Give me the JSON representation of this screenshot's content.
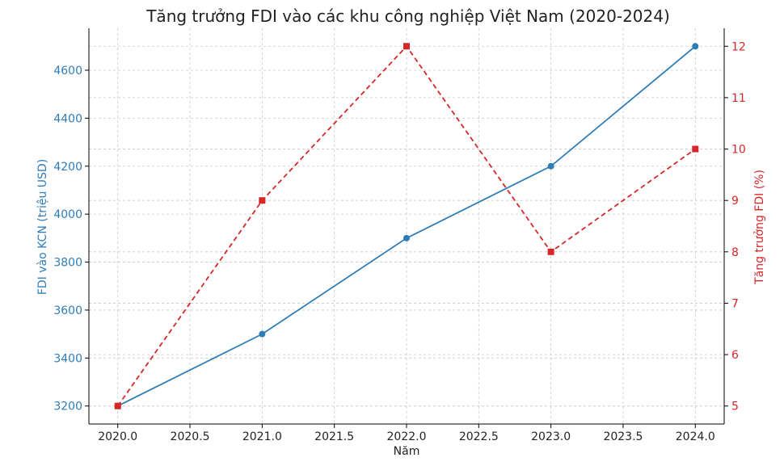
{
  "chart_data": {
    "type": "line",
    "title": "Tăng trưởng FDI vào các khu công nghiệp Việt Nam (2020-2024)",
    "xlabel": "Năm",
    "ylabel_left": "FDI vào KCN (triệu USD)",
    "ylabel_right": "Tăng trưởng FDI (%)",
    "x": [
      2020,
      2021,
      2022,
      2023,
      2024
    ],
    "xlim": [
      2019.8,
      2024.2
    ],
    "x_ticks": [
      "2020.0",
      "2020.5",
      "2021.0",
      "2021.5",
      "2022.0",
      "2022.5",
      "2023.0",
      "2023.5",
      "2024.0"
    ],
    "ylim_left": [
      3125,
      4775
    ],
    "y_ticks_left": [
      "3200",
      "3400",
      "3600",
      "3800",
      "4000",
      "4200",
      "4400",
      "4600"
    ],
    "ylim_right": [
      4.65,
      12.35
    ],
    "y_ticks_right": [
      "5",
      "6",
      "7",
      "8",
      "9",
      "10",
      "11",
      "12"
    ],
    "grid": true,
    "series": [
      {
        "axis": "left",
        "style": "solid",
        "marker": "circle",
        "color": "#2f7db6",
        "values": [
          3200,
          3500,
          3900,
          4200,
          4700
        ]
      },
      {
        "axis": "right",
        "style": "dashed",
        "marker": "square",
        "color": "#d62728",
        "values": [
          5,
          9,
          12,
          8,
          10
        ]
      }
    ],
    "colors": {
      "left_axis": "#2f7db6",
      "right_axis": "#d62728"
    }
  }
}
